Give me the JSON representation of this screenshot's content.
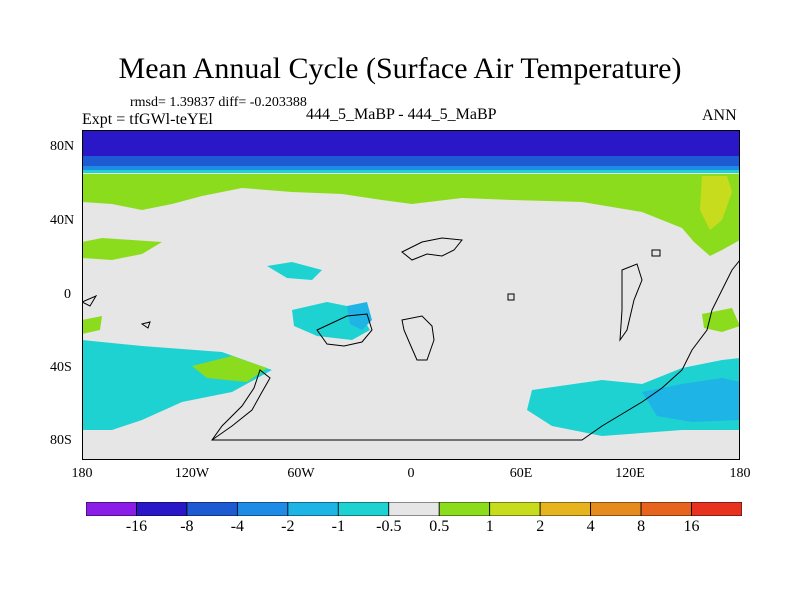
{
  "figure": {
    "title": "Mean Annual Cycle (Surface Air Temperature)",
    "stats_text": "rmsd= 1.39837 diff= -0.203388",
    "expt_text": "Expt = tfGWl-teYEl",
    "case_text": "444_5_MaBP - 444_5_MaBP",
    "season": "ANN"
  },
  "axes": {
    "y_ticks": [
      "80N",
      "40N",
      "0",
      "40S",
      "80S"
    ],
    "x_ticks": [
      "180",
      "120W",
      "60W",
      "0",
      "60E",
      "120E",
      "180"
    ]
  },
  "colorbar": {
    "labels": [
      "-16",
      "-8",
      "-4",
      "-2",
      "-1",
      "-0.5",
      "0.5",
      "1",
      "2",
      "4",
      "8",
      "16"
    ],
    "colors": [
      "#8a1ee6",
      "#2a17c8",
      "#1e5ad2",
      "#1e8ce6",
      "#1eb4e6",
      "#1ed2d2",
      "#e6e6e6",
      "#8cdc1e",
      "#c8dc1e",
      "#e6b41e",
      "#e68c1e",
      "#e6641e",
      "#e6321e"
    ]
  },
  "chart_data": {
    "type": "contour-map",
    "title": "Mean Annual Cycle (Surface Air Temperature)",
    "x_range": [
      -180,
      180
    ],
    "y_range": [
      -90,
      90
    ],
    "legend": "bottom",
    "bands": [
      {
        "region": "north polar 70N-90N",
        "range": "-8 to -4"
      },
      {
        "region": "arctic coast ~66N",
        "range": "-4 to -2"
      },
      {
        "region": "northern mid-high latitudes 40N-65N",
        "range": "0.5 to 1"
      },
      {
        "region": "tropics and mid latitudes",
        "range": "-0.5 to 0.5"
      },
      {
        "region": "southern high latitudes 40S-80S",
        "range": "-1 to -0.5"
      }
    ]
  }
}
